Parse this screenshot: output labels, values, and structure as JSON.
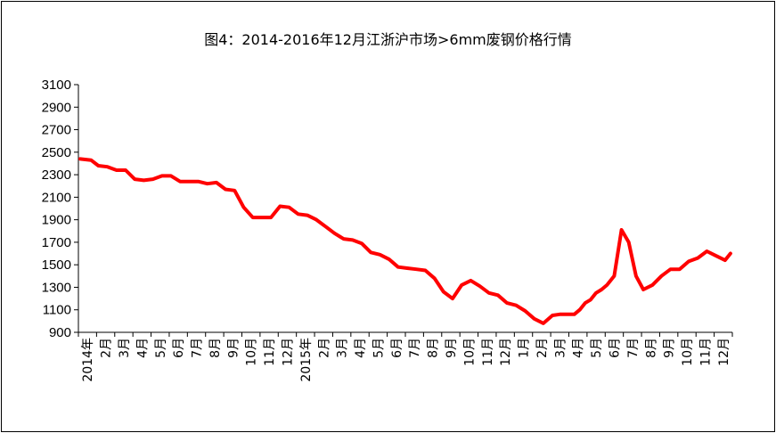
{
  "chart_data": {
    "type": "line",
    "title": "图4：2014-2016年12月江浙沪市场>6mm废钢价格行情",
    "xlabel": "",
    "ylabel": "",
    "ylim": [
      900,
      3100
    ],
    "yticks": [
      900,
      1100,
      1300,
      1500,
      1700,
      1900,
      2100,
      2300,
      2500,
      2700,
      2900,
      3100
    ],
    "x_tick_labels": [
      "2014年",
      "2月",
      "3月",
      "4月",
      "5月",
      "6月",
      "7月",
      "8月",
      "9月",
      "10月",
      "11月",
      "12月",
      "2015年",
      "2月",
      "3月",
      "4月",
      "5月",
      "6月",
      "7月",
      "8月",
      "9月",
      "10月",
      "11月",
      "12月",
      "1月",
      "2月",
      "3月",
      "4月",
      "5月",
      "6月",
      "7月",
      "8月",
      "9月",
      "10月",
      "11月",
      "12月"
    ],
    "grid": false,
    "legend": "none",
    "line_color": "#ff0000",
    "series": [
      {
        "x": [
          0,
          0.6,
          1,
          1.5,
          2,
          2.5,
          3,
          3.5,
          4,
          4.5,
          5,
          5.5,
          6,
          6.5,
          7,
          7.5,
          8,
          8.5,
          9,
          9.5,
          10,
          10.5,
          11,
          11.5,
          12,
          12.5,
          13,
          13.5,
          14,
          14.5,
          15,
          15.5,
          16,
          16.5,
          17,
          17.5,
          18,
          18.5,
          19,
          19.5,
          20,
          20.5,
          21,
          21.5,
          22,
          22.5,
          23,
          23.5,
          24,
          24.5,
          25,
          25.5,
          26,
          26.4,
          26.8,
          27.2,
          27.5,
          27.8,
          28.1,
          28.4,
          28.7,
          29,
          29.4,
          29.8,
          30.2,
          30.6,
          31,
          31.5,
          32,
          32.5,
          33,
          33.5,
          34,
          34.5,
          35,
          35.5,
          35.8
        ],
        "values": [
          2440,
          2430,
          2380,
          2370,
          2340,
          2340,
          2260,
          2250,
          2260,
          2290,
          2290,
          2240,
          2240,
          2240,
          2220,
          2230,
          2170,
          2160,
          2010,
          1920,
          1920,
          1920,
          2020,
          2010,
          1950,
          1940,
          1900,
          1840,
          1780,
          1730,
          1720,
          1690,
          1610,
          1590,
          1550,
          1480,
          1470,
          1460,
          1450,
          1380,
          1260,
          1200,
          1320,
          1360,
          1310,
          1250,
          1230,
          1160,
          1140,
          1090,
          1020,
          980,
          1050,
          1060,
          1060,
          1060,
          1100,
          1160,
          1190,
          1250,
          1280,
          1320,
          1400,
          1810,
          1700,
          1400,
          1280,
          1320,
          1400,
          1460,
          1460,
          1530,
          1560,
          1620,
          1580,
          1540,
          1600
        ]
      }
    ]
  }
}
